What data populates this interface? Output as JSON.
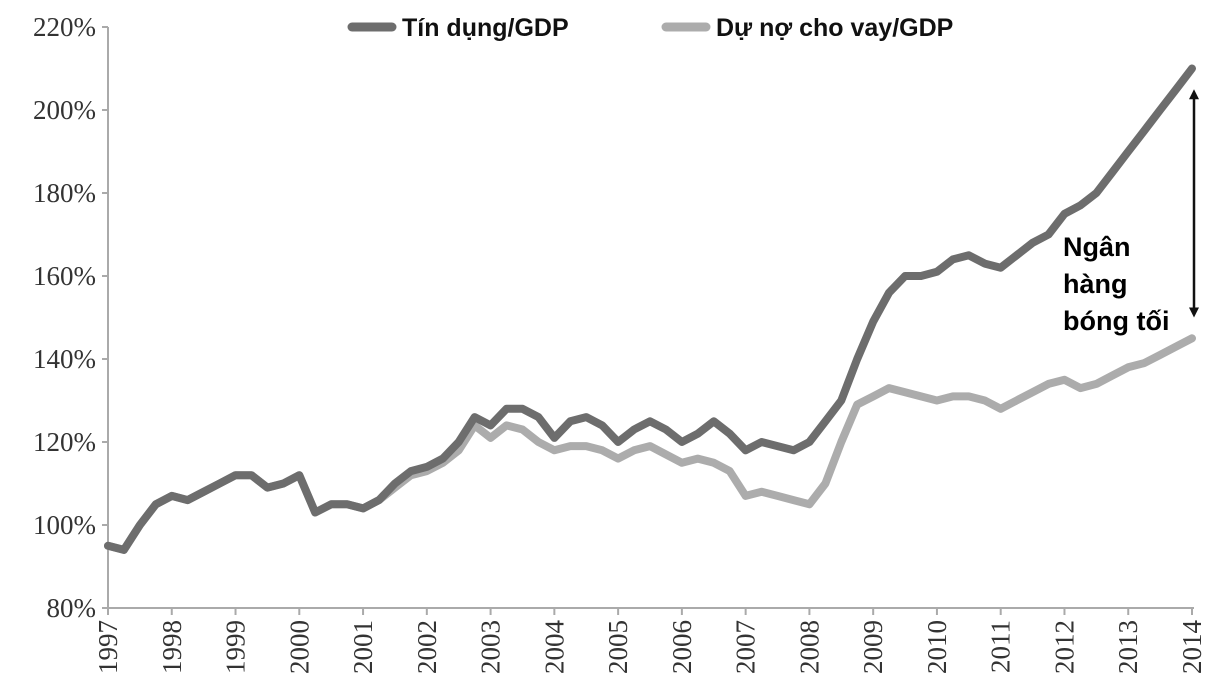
{
  "chart_data": {
    "type": "line",
    "title": "",
    "xlabel": "",
    "ylabel": "",
    "ylim": [
      80,
      220
    ],
    "xlim": [
      1997,
      2014
    ],
    "yticks": [
      "80%",
      "100%",
      "120%",
      "140%",
      "160%",
      "180%",
      "200%",
      "220%"
    ],
    "ytick_values": [
      80,
      100,
      120,
      140,
      160,
      180,
      200,
      220
    ],
    "xticks": [
      "1997",
      "1998",
      "1999",
      "2000",
      "2001",
      "2002",
      "2003",
      "2004",
      "2005",
      "2006",
      "2007",
      "2008",
      "2009",
      "2010",
      "2011",
      "2012",
      "2013",
      "2014"
    ],
    "legend_position": "top",
    "x": [
      1997,
      1997.25,
      1997.5,
      1997.75,
      1998,
      1998.25,
      1998.5,
      1998.75,
      1999,
      1999.25,
      1999.5,
      1999.75,
      2000,
      2000.25,
      2000.5,
      2000.75,
      2001,
      2001.25,
      2001.5,
      2001.75,
      2002,
      2002.25,
      2002.5,
      2002.75,
      2003,
      2003.25,
      2003.5,
      2003.75,
      2004,
      2004.25,
      2004.5,
      2004.75,
      2005,
      2005.25,
      2005.5,
      2005.75,
      2006,
      2006.25,
      2006.5,
      2006.75,
      2007,
      2007.25,
      2007.5,
      2007.75,
      2008,
      2008.25,
      2008.5,
      2008.75,
      2009,
      2009.25,
      2009.5,
      2009.75,
      2010,
      2010.25,
      2010.5,
      2010.75,
      2011,
      2011.25,
      2011.5,
      2011.75,
      2012,
      2012.25,
      2012.5,
      2012.75,
      2013,
      2013.25,
      2013.5,
      2013.75,
      2014
    ],
    "series": [
      {
        "name": "Tín dụng/GDP",
        "color": "#6d6d6d",
        "values": [
          95,
          94,
          100,
          105,
          107,
          106,
          108,
          110,
          112,
          112,
          109,
          110,
          112,
          103,
          105,
          105,
          104,
          106,
          110,
          113,
          114,
          116,
          120,
          126,
          124,
          128,
          128,
          126,
          121,
          125,
          126,
          124,
          120,
          123,
          125,
          123,
          120,
          122,
          125,
          122,
          118,
          120,
          119,
          118,
          120,
          125,
          130,
          140,
          149,
          156,
          160,
          160,
          161,
          164,
          165,
          163,
          162,
          165,
          168,
          170,
          175,
          177,
          180,
          185,
          190,
          195,
          200,
          205,
          210
        ]
      },
      {
        "name": "Dự nợ cho vay/GDP",
        "color": "#acacac",
        "values": [
          95,
          94,
          100,
          105,
          107,
          106,
          108,
          110,
          112,
          112,
          109,
          110,
          112,
          103,
          105,
          105,
          104,
          106,
          109,
          112,
          113,
          115,
          118,
          124,
          121,
          124,
          123,
          120,
          118,
          119,
          119,
          118,
          116,
          118,
          119,
          117,
          115,
          116,
          115,
          113,
          107,
          108,
          107,
          106,
          105,
          110,
          120,
          129,
          131,
          133,
          132,
          131,
          130,
          131,
          131,
          130,
          128,
          130,
          132,
          134,
          135,
          133,
          134,
          136,
          138,
          139,
          141,
          143,
          145
        ]
      }
    ],
    "annotations": [
      {
        "text": "Ngân hàng bóng tối",
        "arrow_from": 205,
        "arrow_to": 150,
        "x": 2014
      }
    ],
    "annotation_lines": [
      "Ngân",
      "hàng",
      "bóng tối"
    ]
  }
}
